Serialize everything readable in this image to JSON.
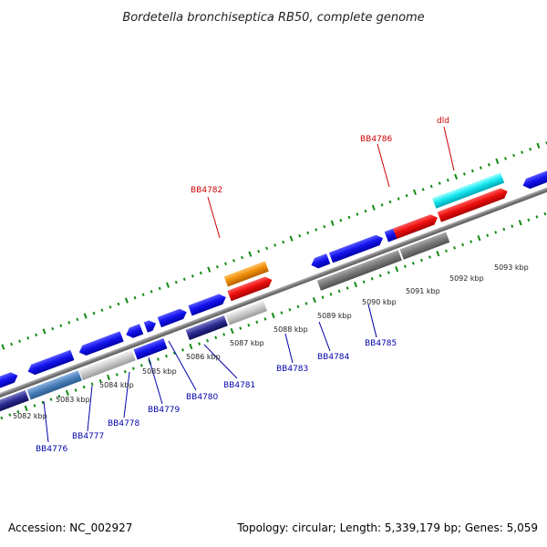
{
  "title": "Bordetella bronchiseptica RB50, complete genome",
  "footer": {
    "accession": "Accession: NC_002927",
    "topology": "Topology: circular; Length: 5,339,179 bp; Genes: 5,059"
  },
  "colors": {
    "forward_cds": "#1010e6",
    "reverse_cds": "#7a7a7a",
    "backbone": "#8c8c8c",
    "tick": "#138a13",
    "highlight_red": "#e60f0f",
    "highlight_orange": "#f08c0a",
    "highlight_cyan": "#14e6ee",
    "label_blue": "#0000aa",
    "label_red": "#cc0000"
  },
  "kbp_labels": [
    "5082 kbp",
    "5083 kbp",
    "5084 kbp",
    "5085 kbp",
    "5086 kbp",
    "5087 kbp",
    "5088 kbp",
    "5089 kbp",
    "5090 kbp",
    "5091 kbp",
    "5092 kbp",
    "5093 kbp"
  ],
  "gene_labels": [
    "BB4776",
    "BB4777",
    "BB4778",
    "BB4779",
    "BB4780",
    "BB4781",
    "BB4783",
    "BB4784",
    "BB4785"
  ],
  "highlight_labels": [
    "BB4782",
    "BB4786",
    "dld"
  ]
}
